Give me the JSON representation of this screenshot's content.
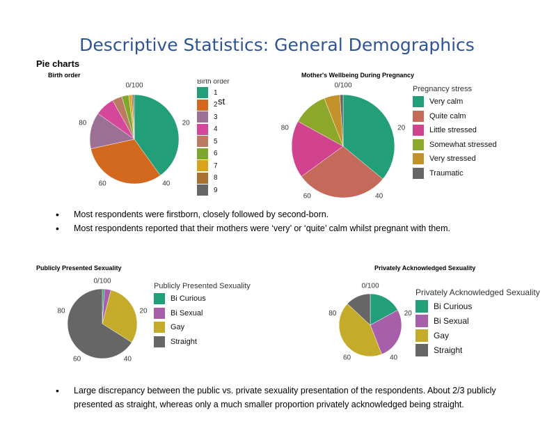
{
  "page": {
    "title": "Descriptive Statistics: General Demographics",
    "section_label": "Pie charts",
    "stray_text": "st"
  },
  "bullets_top": [
    "Most respondents were firstborn, closely followed by second-born.",
    "Most respondents reported that their mothers were ‘very’ or ‘quite’ calm whilst pregnant with them."
  ],
  "bullets_bottom": [
    "Large discrepancy between the public vs. private sexuality presentation of the respondents. About 2/3 publicly presented as straight, whereas only a much smaller proportion privately acknowledged being straight."
  ],
  "chart_data": [
    {
      "type": "pie",
      "title": "Birth order",
      "legend_title": "Birth order",
      "tick_labels": [
        "0/100",
        "20",
        "40",
        "60",
        "80"
      ],
      "categories": [
        "1",
        "2",
        "3",
        "4",
        "5",
        "6",
        "7",
        "8",
        "9"
      ],
      "values": [
        39.5,
        31,
        13,
        7,
        3.5,
        2.5,
        1,
        0.5,
        0.5
      ],
      "colors": [
        "#229e78",
        "#d2691e",
        "#9c6f95",
        "#d4479a",
        "#b97c60",
        "#7fa62f",
        "#d9a31e",
        "#a97232",
        "#666666"
      ]
    },
    {
      "type": "pie",
      "title": "Mother's Wellbeing During Pregnancy",
      "legend_title": "Pregnancy stress",
      "tick_labels": [
        "0/100",
        "20",
        "40",
        "60",
        "80"
      ],
      "categories": [
        "Very calm",
        "Quite calm",
        "Little stressed",
        "Somewhat stressed",
        "Very stressed",
        "Traumatic"
      ],
      "values": [
        36,
        29,
        18,
        11,
        5,
        1
      ],
      "colors": [
        "#229e78",
        "#c56a5b",
        "#d1438e",
        "#8ca72a",
        "#c4922b",
        "#666666"
      ]
    },
    {
      "type": "pie",
      "title": "Publicly Presented Sexuality",
      "legend_title": "Publicly Presented Sexuality",
      "tick_labels": [
        "0/100",
        "20",
        "40",
        "60",
        "80"
      ],
      "categories": [
        "Bi Curious",
        "Bi Sexual",
        "Gay",
        "Straight"
      ],
      "values": [
        1,
        3,
        30,
        66
      ],
      "colors": [
        "#229e78",
        "#a65fa8",
        "#c4ac2a",
        "#666666"
      ]
    },
    {
      "type": "pie",
      "title": "Privately Acknowledged Sexuality",
      "legend_title": "Privately Acknowledged Sexuality",
      "tick_labels": [
        "0/100",
        "20",
        "40",
        "60",
        "80"
      ],
      "categories": [
        "Bi Curious",
        "Bi Sexual",
        "Gay",
        "Straight"
      ],
      "values": [
        17,
        27,
        43,
        13
      ],
      "colors": [
        "#229e78",
        "#a65fa8",
        "#c4ac2a",
        "#666666"
      ]
    }
  ]
}
